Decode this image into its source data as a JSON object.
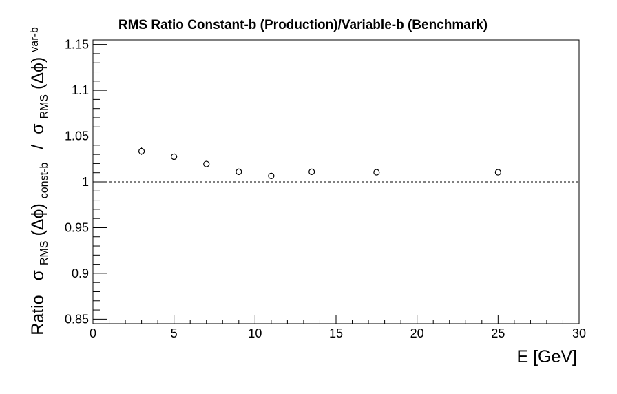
{
  "chart_data": {
    "type": "scatter",
    "title": "RMS Ratio Constant-b (Production)/Variable-b (Benchmark)",
    "xlabel": "E  [GeV]",
    "ylabel": {
      "prefix": "Ratio",
      "num_symbol": "σ",
      "num_sub": "RMS",
      "num_arg": "(Δϕ)",
      "num_sub2": "const-b",
      "separator": "/",
      "den_symbol": "σ",
      "den_sub": "RMS",
      "den_arg": "(Δϕ)",
      "den_sub2": "var-b"
    },
    "xlim": [
      0,
      30
    ],
    "ylim": [
      0.845,
      1.155
    ],
    "xticks": [
      0,
      5,
      10,
      15,
      20,
      25,
      30
    ],
    "xtick_labels": [
      "0",
      "5",
      "10",
      "15",
      "20",
      "25",
      "30"
    ],
    "yticks": [
      0.85,
      0.9,
      0.95,
      1,
      1.05,
      1.1,
      1.15
    ],
    "ytick_labels": [
      "0.85",
      "0.9",
      "0.95",
      "1",
      "1.05",
      "1.1",
      "1.15"
    ],
    "reference_line": 1.0,
    "grid": false,
    "series": [
      {
        "x": [
          3,
          5,
          7,
          9,
          11,
          13.5,
          17.5,
          25
        ],
        "y": [
          1.0335,
          1.0275,
          1.0195,
          1.011,
          1.0065,
          1.011,
          1.0105,
          1.0105
        ],
        "yerr": [
          0.004,
          0.004,
          0.0035,
          0.0035,
          0.0035,
          0.003,
          0.0015,
          0.0015
        ]
      }
    ]
  }
}
